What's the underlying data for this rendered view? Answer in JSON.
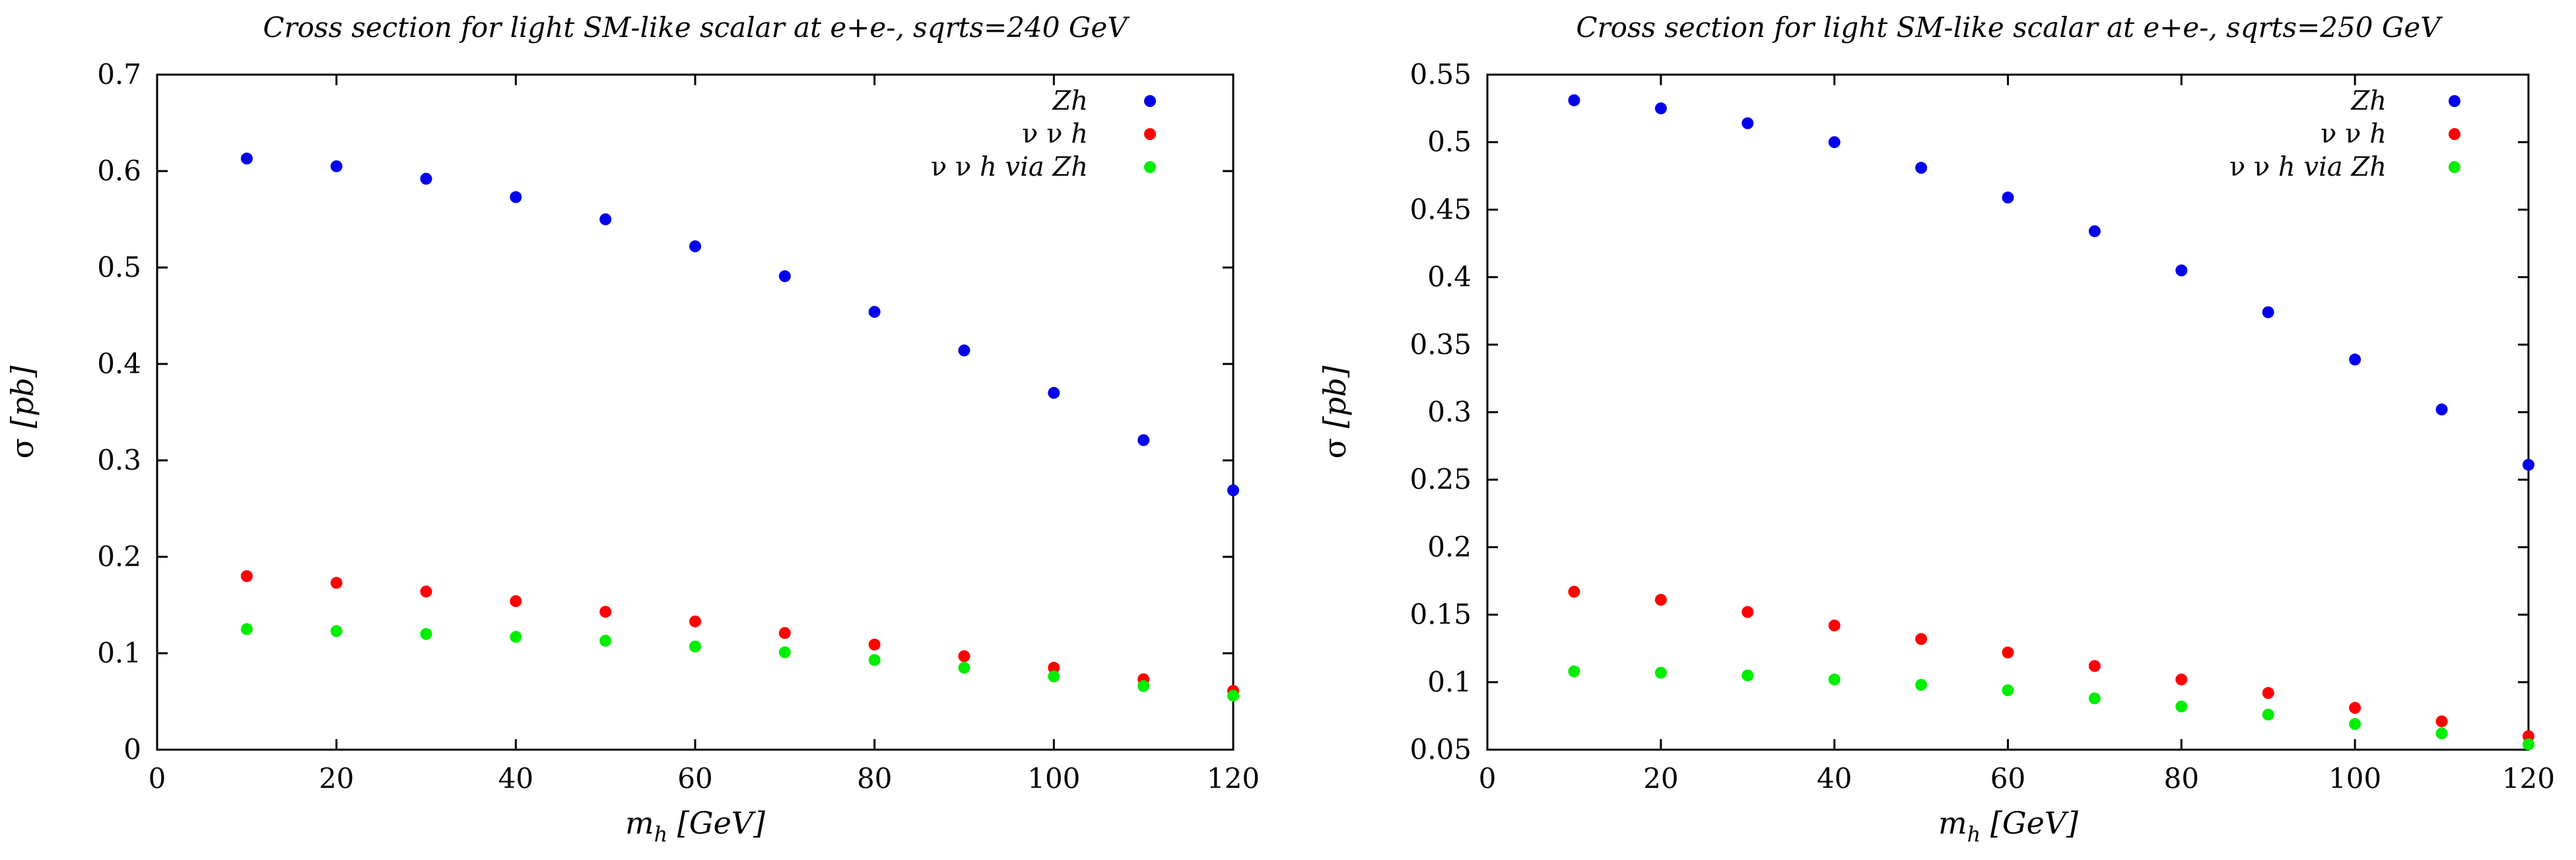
{
  "chart_data": [
    {
      "type": "scatter",
      "title": "Cross section for light SM-like scalar at e+e-, sqrts=240 GeV",
      "xlabel": {
        "main": "m",
        "sub": "h",
        "rest": " [GeV]"
      },
      "ylabel": {
        "sigma": "σ",
        "rest": " [pb]"
      },
      "xlim": [
        0,
        120
      ],
      "ylim": [
        0,
        0.7
      ],
      "xticks": [
        0,
        20,
        40,
        60,
        80,
        100,
        120
      ],
      "xtick_labels": [
        "0",
        "20",
        "40",
        "60",
        "80",
        "100",
        "120"
      ],
      "yticks": [
        0,
        0.1,
        0.2,
        0.3,
        0.4,
        0.5,
        0.6,
        0.7
      ],
      "ytick_labels": [
        "0",
        "0.1",
        "0.2",
        "0.3",
        "0.4",
        "0.5",
        "0.6",
        "0.7"
      ],
      "legend_position": "top-right",
      "x": [
        10,
        20,
        30,
        40,
        50,
        60,
        70,
        80,
        90,
        100,
        110,
        120
      ],
      "series": [
        {
          "name": "Zh",
          "legend_parts": [
            {
              "t": "Zh",
              "i": true
            }
          ],
          "color": "#0000ee",
          "values": [
            0.613,
            0.605,
            0.592,
            0.573,
            0.55,
            0.522,
            0.491,
            0.454,
            0.414,
            0.37,
            0.321,
            0.269
          ]
        },
        {
          "name": "ν ν h",
          "legend_parts": [
            {
              "t": "ν ν ",
              "i": false
            },
            {
              "t": "h",
              "i": true
            }
          ],
          "color": "#ff0000",
          "values": [
            0.18,
            0.173,
            0.164,
            0.154,
            0.143,
            0.133,
            0.121,
            0.109,
            0.097,
            0.085,
            0.073,
            0.061
          ]
        },
        {
          "name": "ν ν h via Zh",
          "legend_parts": [
            {
              "t": "ν ν ",
              "i": false
            },
            {
              "t": "h via Zh",
              "i": true
            }
          ],
          "color": "#00ee00",
          "values": [
            0.125,
            0.123,
            0.12,
            0.117,
            0.113,
            0.107,
            0.101,
            0.093,
            0.085,
            0.076,
            0.066,
            0.056
          ]
        }
      ]
    },
    {
      "type": "scatter",
      "title": "Cross section for light SM-like scalar at e+e-, sqrts=250 GeV",
      "xlabel": {
        "main": "m",
        "sub": "h",
        "rest": " [GeV]"
      },
      "ylabel": {
        "sigma": "σ",
        "rest": " [pb]"
      },
      "xlim": [
        0,
        120
      ],
      "ylim": [
        0.05,
        0.55
      ],
      "xticks": [
        0,
        20,
        40,
        60,
        80,
        100,
        120
      ],
      "xtick_labels": [
        "0",
        "20",
        "40",
        "60",
        "80",
        "100",
        "120"
      ],
      "yticks": [
        0.05,
        0.1,
        0.15,
        0.2,
        0.25,
        0.3,
        0.35,
        0.4,
        0.45,
        0.5,
        0.55
      ],
      "ytick_labels": [
        "0.05",
        "0.1",
        "0.15",
        "0.2",
        "0.25",
        "0.3",
        "0.35",
        "0.4",
        "0.45",
        "0.5",
        "0.55"
      ],
      "legend_position": "top-right",
      "x": [
        10,
        20,
        30,
        40,
        50,
        60,
        70,
        80,
        90,
        100,
        110,
        120
      ],
      "series": [
        {
          "name": "Zh",
          "legend_parts": [
            {
              "t": "Zh",
              "i": true
            }
          ],
          "color": "#0000ee",
          "values": [
            0.531,
            0.525,
            0.514,
            0.5,
            0.481,
            0.459,
            0.434,
            0.405,
            0.374,
            0.339,
            0.302,
            0.261
          ]
        },
        {
          "name": "ν ν h",
          "legend_parts": [
            {
              "t": "ν ν ",
              "i": false
            },
            {
              "t": "h",
              "i": true
            }
          ],
          "color": "#ff0000",
          "values": [
            0.167,
            0.161,
            0.152,
            0.142,
            0.132,
            0.122,
            0.112,
            0.102,
            0.092,
            0.081,
            0.071,
            0.06
          ]
        },
        {
          "name": "ν ν h via Zh",
          "legend_parts": [
            {
              "t": "ν ν ",
              "i": false
            },
            {
              "t": "h via Zh",
              "i": true
            }
          ],
          "color": "#00ee00",
          "values": [
            0.108,
            0.107,
            0.105,
            0.102,
            0.098,
            0.094,
            0.088,
            0.082,
            0.076,
            0.069,
            0.062,
            0.054
          ]
        }
      ]
    }
  ]
}
